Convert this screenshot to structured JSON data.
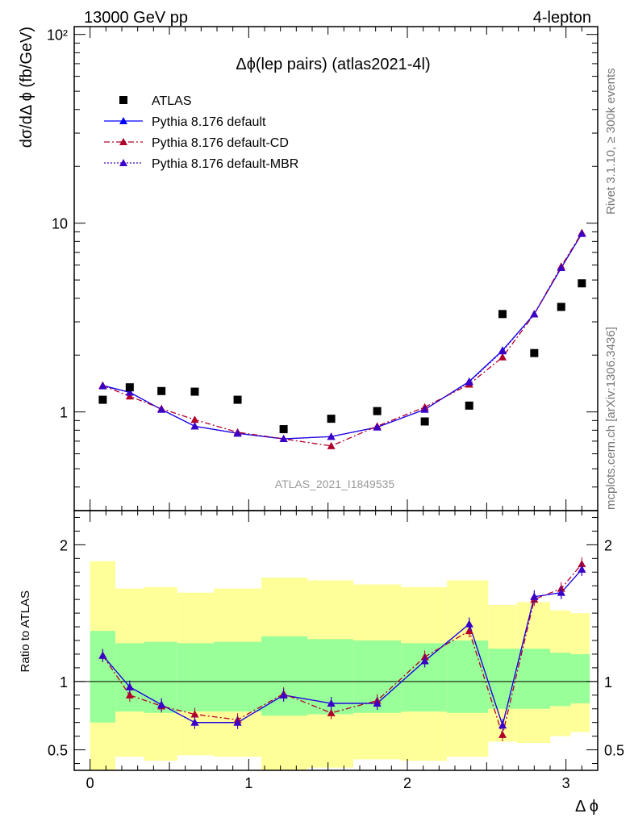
{
  "header": {
    "left": "13000 GeV pp",
    "right": "4-lepton"
  },
  "side_notes": {
    "rivet": "Rivet 3.1.10, ≥ 300k events",
    "mcplots": "mcplots.cern.ch [arXiv:1306.3436]"
  },
  "colors": {
    "atlas": "#000000",
    "default": "#0000ff",
    "default_cd": "#b0002a",
    "default_mbr": "#3a00c8",
    "band_inner": "#99ff99",
    "band_outer": "#ffff99"
  },
  "chart_data": [
    {
      "type": "scatter",
      "panel": "main",
      "title": "Δϕ(lep pairs) (atlas2021-4l)",
      "ylabel": "dσ/dΔ ϕ (fb/GeV)",
      "xlabel": "",
      "ylog": true,
      "xlim": [
        -0.1,
        3.2
      ],
      "ylim": [
        0.3,
        110
      ],
      "yticks": [
        {
          "value": 1,
          "label": "1"
        },
        {
          "value": 10,
          "label": "10"
        },
        {
          "value": 100,
          "label": "10²"
        }
      ],
      "annotation": "ATLAS_2021_I1849535",
      "legend_position": "top-left",
      "x": [
        0.08,
        0.25,
        0.45,
        0.66,
        0.93,
        1.22,
        1.52,
        1.81,
        2.11,
        2.39,
        2.6,
        2.8,
        2.97,
        3.1
      ],
      "series": [
        {
          "name": "ATLAS",
          "marker": "square",
          "values": [
            1.16,
            1.35,
            1.29,
            1.28,
            1.16,
            0.81,
            0.92,
            1.01,
            0.89,
            1.08,
            3.3,
            2.05,
            3.6,
            4.8
          ]
        },
        {
          "name": "Pythia 8.176 default",
          "marker": "triangle",
          "line": "solid",
          "values": [
            1.38,
            1.27,
            1.03,
            0.84,
            0.77,
            0.72,
            0.74,
            0.83,
            1.03,
            1.45,
            2.12,
            3.3,
            5.8,
            8.8
          ]
        },
        {
          "name": "Pythia 8.176 default-CD",
          "marker": "triangle",
          "line": "dashdot",
          "values": [
            1.38,
            1.21,
            1.04,
            0.91,
            0.78,
            0.72,
            0.66,
            0.84,
            1.06,
            1.4,
            1.95,
            3.3,
            5.9,
            8.9
          ]
        },
        {
          "name": "Pythia 8.176 default-MBR",
          "marker": "triangle",
          "line": "dotted",
          "values": [
            1.37,
            1.27,
            1.03,
            0.84,
            0.77,
            0.72,
            0.74,
            0.83,
            1.03,
            1.44,
            2.1,
            3.3,
            5.8,
            8.8
          ]
        }
      ]
    },
    {
      "type": "line",
      "panel": "ratio",
      "ylabel": "Ratio to ATLAS",
      "xlabel": "Δ ϕ",
      "xlim": [
        -0.1,
        3.2
      ],
      "ylim": [
        0.35,
        2.25
      ],
      "xticks": [
        {
          "value": 0,
          "label": "0"
        },
        {
          "value": 1,
          "label": "1"
        },
        {
          "value": 2,
          "label": "2"
        },
        {
          "value": 3,
          "label": "3"
        }
      ],
      "yticks": [
        {
          "value": 0.5,
          "label": "0.5"
        },
        {
          "value": 1,
          "label": "1"
        },
        {
          "value": 2,
          "label": "2"
        }
      ],
      "x": [
        0.08,
        0.25,
        0.45,
        0.66,
        0.93,
        1.22,
        1.52,
        1.81,
        2.11,
        2.39,
        2.6,
        2.8,
        2.97,
        3.1
      ],
      "series": [
        {
          "name": "Pythia 8.176 default",
          "values": [
            1.19,
            0.96,
            0.83,
            0.7,
            0.7,
            0.9,
            0.84,
            0.84,
            1.15,
            1.42,
            0.68,
            1.62,
            1.65,
            1.82
          ]
        },
        {
          "name": "Pythia 8.176 default-CD",
          "values": [
            1.19,
            0.9,
            0.82,
            0.76,
            0.72,
            0.91,
            0.77,
            0.86,
            1.18,
            1.37,
            0.61,
            1.6,
            1.68,
            1.86
          ]
        },
        {
          "name": "Pythia 8.176 default-MBR",
          "values": [
            1.19,
            0.96,
            0.83,
            0.7,
            0.7,
            0.9,
            0.84,
            0.84,
            1.15,
            1.42,
            0.68,
            1.62,
            1.65,
            1.82
          ]
        }
      ],
      "bands": {
        "edges": [
          0.0,
          0.16,
          0.34,
          0.55,
          0.78,
          1.08,
          1.37,
          1.66,
          1.96,
          2.25,
          2.51,
          2.69,
          2.9,
          3.03,
          3.15
        ],
        "inner_lo": [
          0.7,
          0.78,
          0.77,
          0.78,
          0.78,
          0.75,
          0.76,
          0.77,
          0.78,
          0.77,
          0.8,
          0.8,
          0.82,
          0.84
        ],
        "inner_hi": [
          1.37,
          1.28,
          1.29,
          1.28,
          1.29,
          1.33,
          1.31,
          1.3,
          1.28,
          1.3,
          1.24,
          1.24,
          1.21,
          1.2
        ],
        "outer_lo": [
          0.3,
          0.45,
          0.42,
          0.46,
          0.45,
          0.3,
          0.37,
          0.43,
          0.42,
          0.45,
          0.56,
          0.55,
          0.6,
          0.63
        ],
        "outer_hi": [
          1.88,
          1.68,
          1.69,
          1.65,
          1.68,
          1.76,
          1.74,
          1.71,
          1.69,
          1.74,
          1.56,
          1.58,
          1.52,
          1.5
        ]
      }
    }
  ]
}
